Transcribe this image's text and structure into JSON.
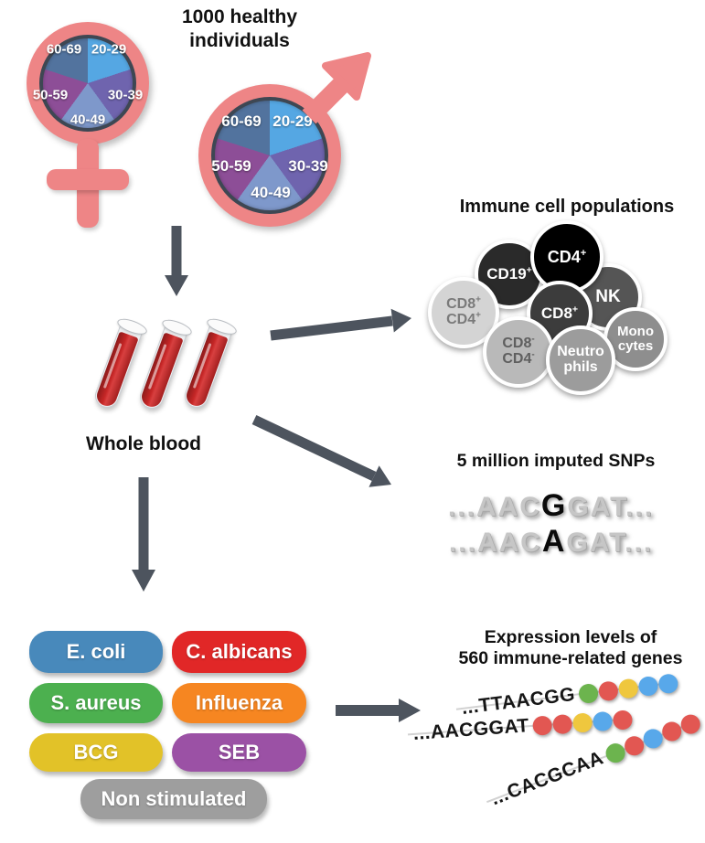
{
  "header": {
    "title_line1": "1000 healthy",
    "title_line2": "individuals"
  },
  "demographics": {
    "symbol_color": "#ee8586",
    "ring_color": "#3e4753",
    "age_groups": [
      {
        "label": "20-29",
        "color": "#55a7e3"
      },
      {
        "label": "30-39",
        "color": "#6f64ae"
      },
      {
        "label": "40-49",
        "color": "#7e98cb"
      },
      {
        "label": "50-59",
        "color": "#8d4e97"
      },
      {
        "label": "60-69",
        "color": "#52739e"
      }
    ]
  },
  "blood": {
    "label": "Whole blood",
    "tube_color": "#c52626"
  },
  "immune": {
    "title": "Immune cell populations",
    "cells": [
      {
        "name": "nk",
        "color": "#555555",
        "text_color": "#ffffff",
        "lines": [
          {
            "text": "NK",
            "sup": ""
          }
        ]
      },
      {
        "name": "cd19-pos",
        "color": "#2a2a2a",
        "text_color": "#ffffff",
        "lines": [
          {
            "text": "CD19",
            "sup": "+"
          }
        ]
      },
      {
        "name": "cd4-pos",
        "color": "#000000",
        "text_color": "#ffffff",
        "lines": [
          {
            "text": "CD4",
            "sup": "+"
          }
        ]
      },
      {
        "name": "cd8-pos-cd4-pos",
        "color": "#d4d4d4",
        "text_color": "#7a7a7a",
        "lines": [
          {
            "text": "CD8",
            "sup": "+"
          },
          {
            "text": "CD4",
            "sup": "+"
          }
        ]
      },
      {
        "name": "monocytes",
        "color": "#8e8e8e",
        "text_color": "#ffffff",
        "lines": [
          {
            "text": "Mono",
            "sup": ""
          },
          {
            "text": "cytes",
            "sup": ""
          }
        ]
      },
      {
        "name": "cd8-pos",
        "color": "#3c3c3c",
        "text_color": "#ffffff",
        "lines": [
          {
            "text": "CD8",
            "sup": "+"
          }
        ]
      },
      {
        "name": "cd8-neg-cd4-neg",
        "color": "#b9b9b9",
        "text_color": "#5f5f5f",
        "lines": [
          {
            "text": "CD8",
            "sup": "-"
          },
          {
            "text": "CD4",
            "sup": "-"
          }
        ]
      },
      {
        "name": "neutrophils",
        "color": "#9c9c9c",
        "text_color": "#ffffff",
        "lines": [
          {
            "text": "Neutro",
            "sup": ""
          },
          {
            "text": "phils",
            "sup": ""
          }
        ]
      }
    ]
  },
  "snps": {
    "title": "5 million imputed SNPs",
    "sequences": [
      {
        "pre": "...AAC",
        "variant": "G",
        "post": "GAT..."
      },
      {
        "pre": "...AAC",
        "variant": "A",
        "post": "GAT..."
      }
    ]
  },
  "stimuli": {
    "buttons": [
      {
        "label": "E. coli",
        "color": "#4889bb"
      },
      {
        "label": "C. albicans",
        "color": "#e12727"
      },
      {
        "label": "S. aureus",
        "color": "#4cb04f"
      },
      {
        "label": "Influenza",
        "color": "#f68621"
      },
      {
        "label": "BCG",
        "color": "#e2c228"
      },
      {
        "label": "SEB",
        "color": "#9b51a5"
      },
      {
        "label": "Non stimulated",
        "color": "#9e9e9e"
      }
    ]
  },
  "expression": {
    "title_line1": "Expression levels of",
    "title_line2": "560 immune-related genes",
    "dot_colors": {
      "green": "#6cb44e",
      "red": "#e25752",
      "yellow": "#efc73e",
      "blue": "#58a8ea"
    },
    "strands": [
      {
        "seq": "...TTAACGG",
        "dots": [
          "green",
          "red",
          "yellow",
          "blue",
          "blue"
        ]
      },
      {
        "seq": "...AACGGAT",
        "dots": [
          "red",
          "red",
          "yellow",
          "blue",
          "red"
        ]
      },
      {
        "seq": "...CACGCAA",
        "dots": [
          "green",
          "red",
          "blue",
          "red",
          "red"
        ]
      }
    ]
  }
}
